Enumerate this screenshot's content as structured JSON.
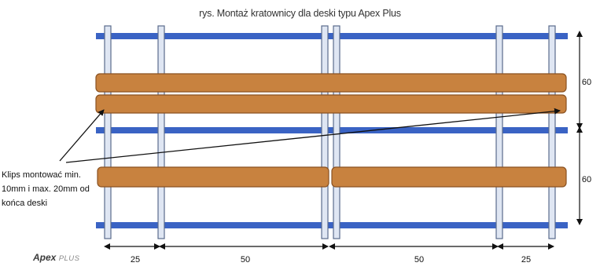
{
  "caption": "rys. Montaż kratownicy dla deski typu Apex Plus",
  "note": {
    "line1": "Klips montować min.",
    "line2": "10mm i max. 20mm od",
    "line3": "końca deski"
  },
  "logo": {
    "brand": "Apex",
    "suffix": "PLUS"
  },
  "dimensions": {
    "horizontal": [
      "25",
      "50",
      "50",
      "25"
    ],
    "vertical": [
      "60",
      "60"
    ]
  },
  "colors": {
    "joist": "#3a63c4",
    "board": "#c8823f",
    "board_edge": "#8a5222",
    "batten": "#dfe6f3",
    "batten_edge": "#5a6b8c"
  }
}
